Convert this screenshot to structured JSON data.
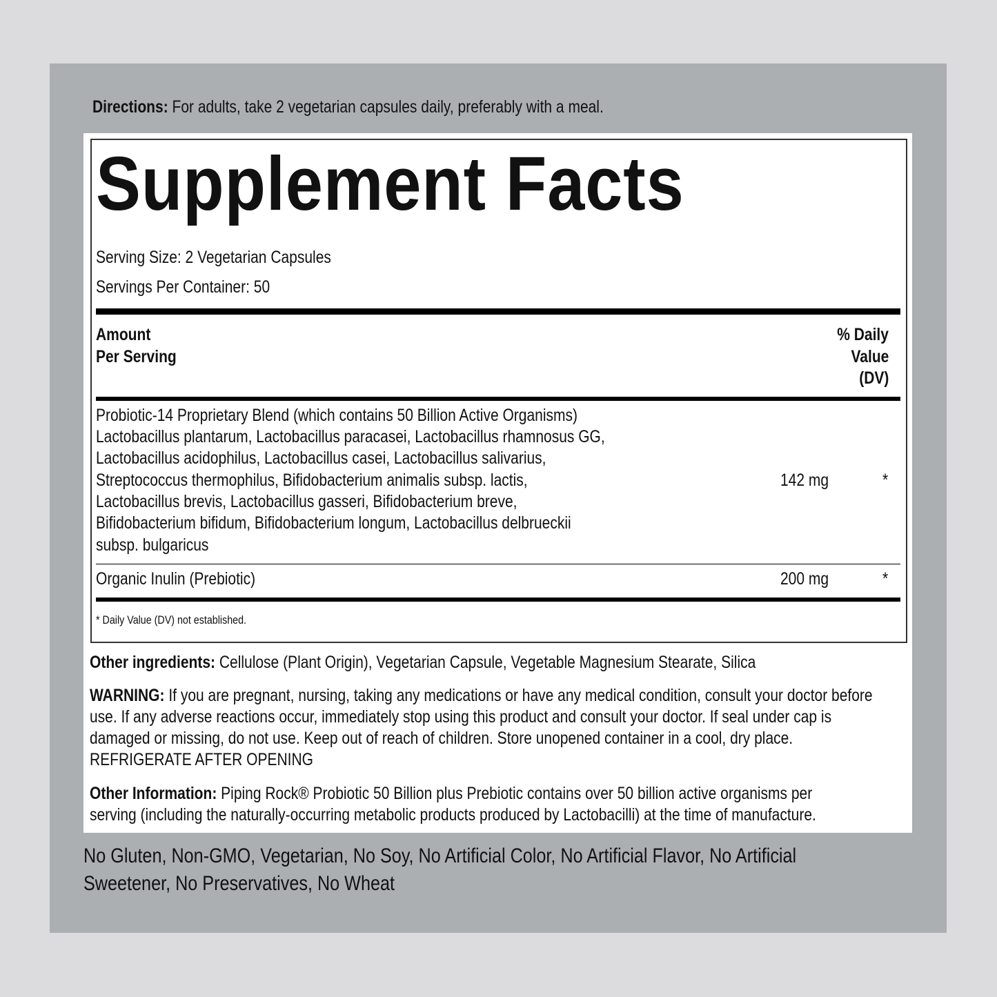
{
  "directions": {
    "label": "Directions:",
    "text": " For adults, take 2 vegetarian capsules daily, preferably with a meal."
  },
  "facts": {
    "title": "Supplement Facts",
    "serving_size": "Serving Size: 2 Vegetarian Capsules",
    "servings_per_container": "Servings Per Container: 50",
    "header_amount": [
      "Amount",
      "Per Serving"
    ],
    "header_dv": [
      "% Daily",
      "Value",
      "(DV)"
    ],
    "rows": [
      {
        "lines": [
          "Probiotic-14 Proprietary Blend (which contains 50 Billion Active Organisms)",
          "Lactobacillus plantarum, Lactobacillus paracasei, Lactobacillus rhamnosus GG,",
          "Lactobacillus acidophilus, Lactobacillus casei, Lactobacillus salivarius,",
          "Streptococcus thermophilus, Bifidobacterium animalis subsp. lactis,",
          "Lactobacillus brevis, Lactobacillus gasseri, Bifidobacterium breve,",
          "Bifidobacterium bifidum, Bifidobacterium longum, Lactobacillus delbrueckii",
          "subsp. bulgaricus"
        ],
        "amount": "142 mg",
        "dv": "*"
      },
      {
        "lines": [
          "Organic Inulin (Prebiotic)"
        ],
        "amount": "200 mg",
        "dv": "*"
      }
    ],
    "footnote": "* Daily Value (DV) not established."
  },
  "other_ingredients": {
    "label": "Other ingredients:",
    "text": " Cellulose (Plant Origin), Vegetarian Capsule, Vegetable Magnesium Stearate, Silica"
  },
  "warning": {
    "label": "WARNING:",
    "lines": [
      " If you are pregnant, nursing, taking any medications or have any medical condition, consult your doctor before",
      "use. If any adverse reactions occur, immediately stop using this product and consult your doctor. If seal under cap is",
      "damaged or missing, do not use. Keep out of reach of children. Store unopened container in a cool, dry place.",
      "REFRIGERATE AFTER OPENING"
    ]
  },
  "other_info": {
    "label": "Other Information:",
    "lines": [
      " Piping Rock® Probiotic 50 Billion plus Prebiotic contains over 50 billion active organisms per",
      "serving (including the naturally-occurring metabolic products produced by Lactobacilli) at the time of manufacture."
    ]
  },
  "claims": [
    "No Gluten, Non-GMO, Vegetarian, No Soy, No Artificial Color, No Artificial Flavor, No Artificial",
    "Sweetener, No Preservatives, No Wheat"
  ]
}
